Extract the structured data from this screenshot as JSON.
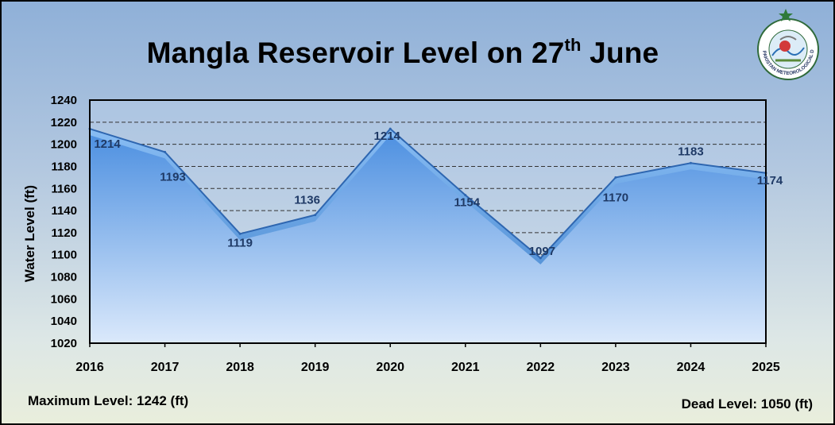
{
  "title": {
    "main": "Mangla Reservoir Level on 27",
    "superscript": "th",
    "suffix": " June"
  },
  "logo": {
    "icon": "pakistan-meteorological-department-seal",
    "text": "PAKISTAN METEOROLOGICAL DEPARTMENT"
  },
  "footer": {
    "max_level": "Maximum Level: 1242 (ft)",
    "dead_level": "Dead Level: 1050 (ft)"
  },
  "colors": {
    "area_top": "#4a8ee0",
    "area_bottom": "#dbe9fb",
    "line": "#2e66b0",
    "label": "#1f3a66"
  },
  "chart_data": {
    "type": "area",
    "title": "Mangla Reservoir Level on 27th June",
    "xlabel": "",
    "ylabel": "Water Level (ft)",
    "x": [
      "2016",
      "2017",
      "2018",
      "2019",
      "2020",
      "2021",
      "2022",
      "2023",
      "2024",
      "2025"
    ],
    "values": [
      1214,
      1193,
      1119,
      1136,
      1214,
      1154,
      1097,
      1170,
      1183,
      1174
    ],
    "data_labels": [
      "1214",
      "1193",
      "1119",
      "1136",
      "1214",
      "1154",
      "1097",
      "1170",
      "1183",
      "1174"
    ],
    "ylim": [
      1020,
      1240
    ],
    "yticks": [
      "1020",
      "1040",
      "1060",
      "1080",
      "1100",
      "1120",
      "1140",
      "1160",
      "1180",
      "1200",
      "1220",
      "1240"
    ],
    "grid": "horizontal dashed",
    "legend": "none"
  }
}
